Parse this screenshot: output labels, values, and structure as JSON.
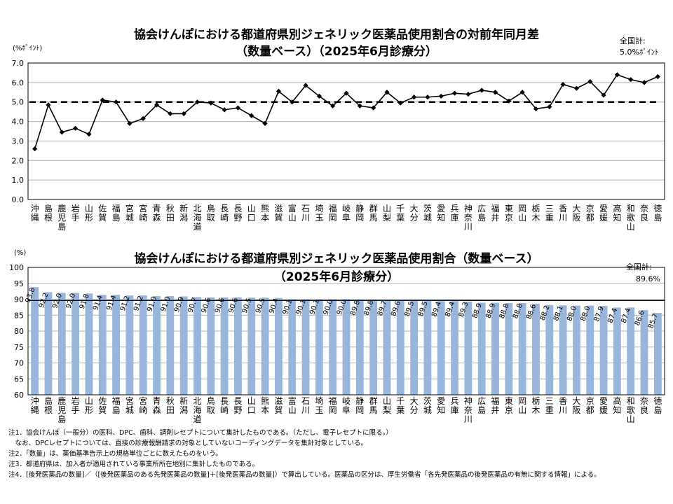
{
  "chart_data": [
    {
      "type": "line",
      "title": [
        "協会けんぽにおける都道府県別ジェネリック医薬品使用割合の対前年同月差",
        "（数量ベース）（2025年6月診療分）"
      ],
      "ylabel": "(%ﾎﾟｲﾝﾄ)",
      "ylim": [
        0,
        7
      ],
      "yticks": [
        "0.0",
        "1.0",
        "2.0",
        "3.0",
        "4.0",
        "5.0",
        "6.0",
        "7.0"
      ],
      "national_label": "全国計:",
      "national_value_text": "5.0%ﾎﾟｲﾝﾄ",
      "reference_value": 5.0,
      "categories": [
        "沖縄",
        "島根",
        "鹿児島",
        "岩手",
        "山形",
        "佐賀",
        "福島",
        "宮城",
        "宮崎",
        "青森",
        "秋田",
        "新潟",
        "北海道",
        "鳥取",
        "長崎",
        "長野",
        "山口",
        "熊本",
        "滋賀",
        "富山",
        "石川",
        "埼玉",
        "福岡",
        "岐阜",
        "静岡",
        "群馬",
        "山梨",
        "千葉",
        "大分",
        "茨城",
        "愛知",
        "兵庫",
        "神奈川",
        "広島",
        "福井",
        "東京",
        "岡山",
        "栃木",
        "三重",
        "香川",
        "大阪",
        "京都",
        "愛媛",
        "高知",
        "和歌山",
        "奈良",
        "徳島"
      ],
      "values": [
        2.6,
        4.85,
        3.45,
        3.65,
        3.35,
        5.1,
        5.0,
        3.9,
        4.15,
        4.85,
        4.4,
        4.4,
        5.0,
        4.95,
        4.6,
        4.7,
        4.3,
        3.9,
        5.55,
        5.0,
        5.85,
        5.3,
        4.8,
        5.45,
        4.8,
        4.7,
        5.5,
        4.95,
        5.25,
        5.25,
        5.3,
        5.45,
        5.4,
        5.6,
        5.5,
        5.05,
        5.5,
        4.65,
        4.75,
        5.9,
        5.7,
        6.05,
        5.35,
        6.4,
        6.15,
        6.0,
        6.3
      ]
    },
    {
      "type": "bar",
      "title": [
        "協会けんぽにおける都道府県別ジェネリック医薬品使用割合（数量ベース）",
        "（2025年6月診療分）"
      ],
      "ylabel": "(%)",
      "ylim": [
        60,
        100
      ],
      "yticks": [
        "60",
        "65",
        "70",
        "75",
        "80",
        "85",
        "90",
        "95",
        "100"
      ],
      "national_label": "全国計:",
      "national_value_text": "89.6%",
      "reference_value": 89.6,
      "categories": [
        "沖縄",
        "島根",
        "鹿児島",
        "岩手",
        "山形",
        "佐賀",
        "福島",
        "宮城",
        "宮崎",
        "青森",
        "秋田",
        "新潟",
        "北海道",
        "鳥取",
        "長崎",
        "長野",
        "山口",
        "熊本",
        "滋賀",
        "富山",
        "石川",
        "埼玉",
        "福岡",
        "岐阜",
        "静岡",
        "群馬",
        "山梨",
        "千葉",
        "大分",
        "茨城",
        "愛知",
        "兵庫",
        "神奈川",
        "広島",
        "福井",
        "東京",
        "岡山",
        "栃木",
        "三重",
        "香川",
        "大阪",
        "京都",
        "愛媛",
        "高知",
        "和歌山",
        "奈良",
        "徳島"
      ],
      "values": [
        93.8,
        92.2,
        92.0,
        92.0,
        91.8,
        91.4,
        91.4,
        91.2,
        91.2,
        91.0,
        91.0,
        90.9,
        90.7,
        90.6,
        90.6,
        90.6,
        90.5,
        90.5,
        90.4,
        90.1,
        90.1,
        90.1,
        90.0,
        90.0,
        89.8,
        89.8,
        89.7,
        89.6,
        89.5,
        89.5,
        89.4,
        89.4,
        89.3,
        88.9,
        88.9,
        88.8,
        88.8,
        88.6,
        88.2,
        88.1,
        88.0,
        88.0,
        87.9,
        87.4,
        87.4,
        86.6,
        85.7
      ],
      "value_labels": [
        "93.8",
        "92.2",
        "92.0",
        "92.0",
        "91.8",
        "91.4",
        "91.4",
        "91.2",
        "91.2",
        "91.0",
        "91.0",
        "90.9",
        "90.7",
        "90.6",
        "90.6",
        "90.6",
        "90.5",
        "90.5",
        "90.4",
        "90.1",
        "90.1",
        "90.1",
        "90.0",
        "90.0",
        "89.8",
        "89.8",
        "89.7",
        "89.6",
        "89.5",
        "89.5",
        "89.4",
        "89.4",
        "89.3",
        "88.9",
        "88.9",
        "88.8",
        "88.8",
        "88.6",
        "88.2",
        "88.1",
        "88.0",
        "88.0",
        "87.9",
        "87.4",
        "87.4",
        "86.6",
        "85.7"
      ],
      "bar_color": "#98b5dc"
    }
  ],
  "notes": [
    "注1．協会けんぽ（一般分）の医科、DPC、歯科、調剤レセプトについて集計したものである。（ただし、電子レセプトに限る。）",
    "　なお、DPCレセプトについては、直接の診療報酬請求の対象としていないコーディングデータを集計対象としている。",
    "注2．「数量」は、薬価基準告示上の規格単位ごとに数えたものをいう。",
    "注3．都道府県は、加入者が適用されている事業所所在地別に集計したものである。",
    "注4．[後発医薬品の数量]／（[後発医薬品のある先発医薬品の数量]＋[後発医薬品の数量]）で算出している。医薬品の区分は、厚生労働省「各先発医薬品の後発医薬品の有無に関する情報」による。"
  ]
}
